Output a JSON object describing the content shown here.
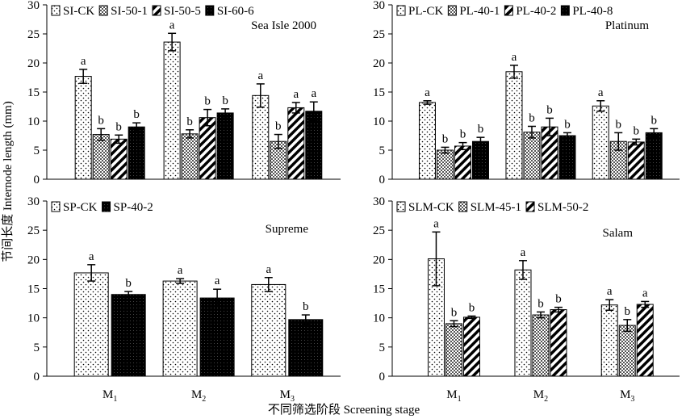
{
  "chart_data": {
    "type": "bar",
    "ylabel": "节间长度 Internode length (mm)",
    "xlabel": "不同筛选阶段 Screening stage",
    "categories": [
      "M1",
      "M2",
      "M3"
    ],
    "categories_display": [
      {
        "main": "M",
        "sub": "1"
      },
      {
        "main": "M",
        "sub": "2"
      },
      {
        "main": "M",
        "sub": "3"
      }
    ],
    "ylim": [
      0,
      30
    ],
    "yticks": [
      0,
      5,
      10,
      15,
      20,
      25,
      30
    ],
    "pattern_colors": {
      "ink": "#000000",
      "paper": "#ffffff"
    },
    "panels": [
      {
        "title": "Sea Isle 2000",
        "series": [
          {
            "name": "SI-CK",
            "pattern": "dots",
            "values": [
              17.7,
              23.6,
              14.4
            ],
            "errors": [
              1.2,
              1.5,
              2.0
            ],
            "labels": [
              "a",
              "a",
              "a"
            ]
          },
          {
            "name": "SI-50-1",
            "pattern": "checker",
            "values": [
              7.7,
              7.8,
              6.5
            ],
            "errors": [
              1.0,
              0.7,
              1.2
            ],
            "labels": [
              "b",
              "b",
              "b"
            ]
          },
          {
            "name": "SI-50-5",
            "pattern": "stripes",
            "values": [
              6.9,
              10.6,
              12.3
            ],
            "errors": [
              0.7,
              1.4,
              0.9
            ],
            "labels": [
              "b",
              "b",
              "a"
            ]
          },
          {
            "name": "SI-60-6",
            "pattern": "solid",
            "values": [
              9.0,
              11.4,
              11.7
            ],
            "errors": [
              0.7,
              0.7,
              1.6
            ],
            "labels": [
              "b",
              "b",
              "a"
            ]
          }
        ]
      },
      {
        "title": "Platinum",
        "series": [
          {
            "name": "PL-CK",
            "pattern": "dots",
            "values": [
              13.2,
              18.5,
              12.6
            ],
            "errors": [
              0.3,
              1.1,
              0.9
            ],
            "labels": [
              "a",
              "a",
              "a"
            ]
          },
          {
            "name": "PL-40-1",
            "pattern": "checker",
            "values": [
              5.0,
              8.1,
              6.5
            ],
            "errors": [
              0.5,
              1.0,
              1.5
            ],
            "labels": [
              "b",
              "b",
              "b"
            ]
          },
          {
            "name": "PL-40-2",
            "pattern": "stripes",
            "values": [
              5.7,
              9.0,
              6.4
            ],
            "errors": [
              0.6,
              1.5,
              0.5
            ],
            "labels": [
              "b",
              "b",
              "b"
            ]
          },
          {
            "name": "PL-40-8",
            "pattern": "solid",
            "values": [
              6.5,
              7.5,
              8.0
            ],
            "errors": [
              0.7,
              0.5,
              0.7
            ],
            "labels": [
              "b",
              "b",
              "b"
            ]
          }
        ]
      },
      {
        "title": "Supreme",
        "series": [
          {
            "name": "SP-CK",
            "pattern": "dots",
            "values": [
              17.7,
              16.3,
              15.7
            ],
            "errors": [
              1.4,
              0.4,
              1.2
            ],
            "labels": [
              "a",
              "a",
              "a"
            ]
          },
          {
            "name": "SP-40-2",
            "pattern": "solid",
            "values": [
              14.0,
              13.4,
              9.7
            ],
            "errors": [
              0.5,
              1.5,
              0.8
            ],
            "labels": [
              "b",
              "a",
              "b"
            ]
          }
        ]
      },
      {
        "title": "Salam",
        "series": [
          {
            "name": "SLM-CK",
            "pattern": "dots",
            "values": [
              20.1,
              18.2,
              12.2
            ],
            "errors": [
              4.6,
              1.6,
              0.9
            ],
            "labels": [
              "a",
              "a",
              "a"
            ]
          },
          {
            "name": "SLM-45-1",
            "pattern": "checker",
            "values": [
              9.0,
              10.5,
              8.7
            ],
            "errors": [
              0.5,
              0.5,
              1.0
            ],
            "labels": [
              "b",
              "b",
              "b"
            ]
          },
          {
            "name": "SLM-50-2",
            "pattern": "stripes",
            "values": [
              10.1,
              11.4,
              12.3
            ],
            "errors": [
              0.2,
              0.4,
              0.5
            ],
            "labels": [
              "b",
              "b",
              "a"
            ]
          }
        ]
      }
    ]
  }
}
